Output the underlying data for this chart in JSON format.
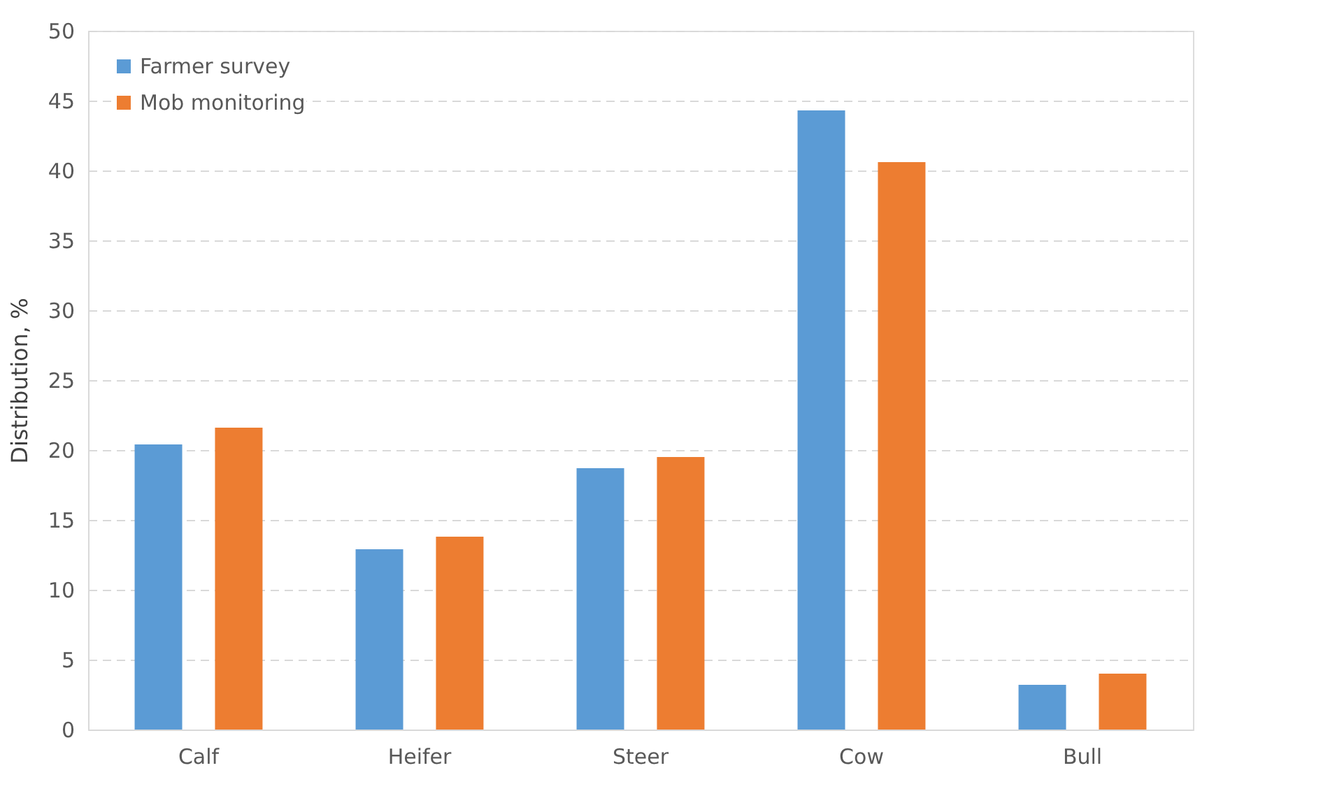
{
  "chart_data": {
    "type": "bar",
    "ylabel": "Distribution, %",
    "categories": [
      "Calf",
      "Heifer",
      "Steer",
      "Cow",
      "Bull"
    ],
    "series": [
      {
        "name": "Farmer survey",
        "color": "#5b9bd5",
        "values": [
          20.4,
          12.9,
          18.7,
          44.3,
          3.2
        ]
      },
      {
        "name": "Mob monitoring",
        "color": "#ed7d31",
        "values": [
          21.6,
          13.8,
          19.5,
          40.6,
          4.0
        ]
      }
    ],
    "ylim": [
      0,
      50
    ],
    "yticks": [
      0,
      5,
      10,
      15,
      20,
      25,
      30,
      35,
      40,
      45,
      50
    ],
    "grid": "y",
    "legend": "top left"
  }
}
